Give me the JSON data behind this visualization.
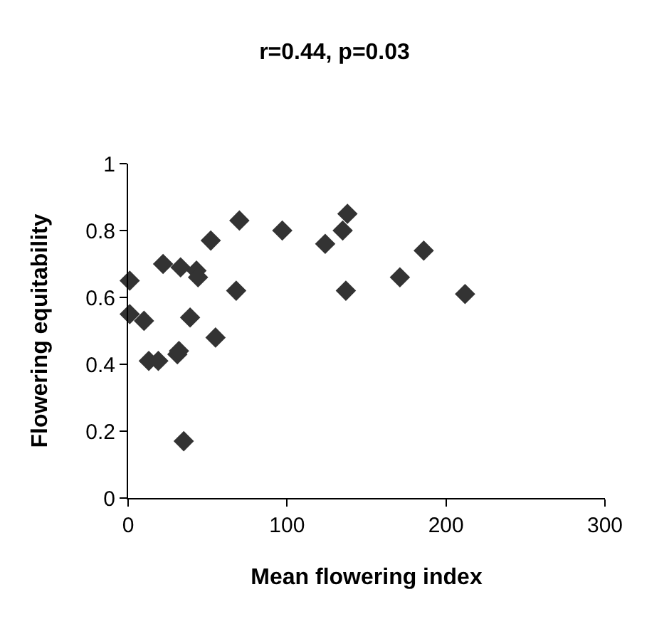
{
  "chart_data": {
    "type": "scatter",
    "title": "r=0.44, p=0.03",
    "xlabel": "Mean flowering index",
    "ylabel": "Flowering equitability",
    "x": [
      1,
      1,
      10,
      13,
      19,
      22,
      31,
      32,
      33,
      35,
      39,
      43,
      44,
      52,
      55,
      68,
      70,
      97,
      124,
      135,
      138,
      137,
      171,
      186,
      212
    ],
    "values": [
      0.65,
      0.55,
      0.53,
      0.41,
      0.41,
      0.7,
      0.43,
      0.44,
      0.69,
      0.17,
      0.54,
      0.68,
      0.66,
      0.77,
      0.48,
      0.62,
      0.83,
      0.8,
      0.76,
      0.8,
      0.85,
      0.62,
      0.66,
      0.74,
      0.61
    ],
    "color": "#333333",
    "marker": "diamond",
    "xlim": [
      0,
      300
    ],
    "xticks": [
      0,
      100,
      200,
      300
    ],
    "ylim": [
      0,
      1
    ],
    "yticks": [
      0,
      0.2,
      0.4,
      0.6,
      0.8,
      1
    ],
    "grid": false
  }
}
